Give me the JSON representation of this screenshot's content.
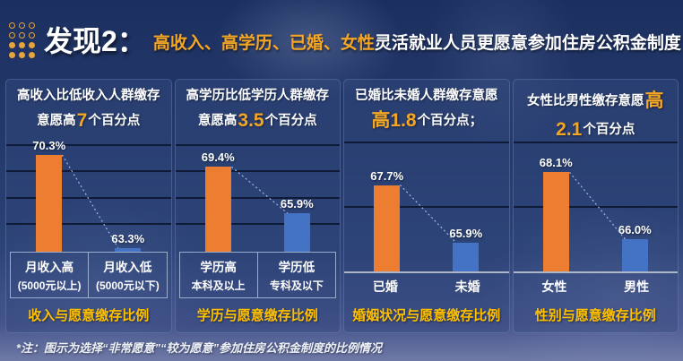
{
  "header": {
    "title": "发现2：",
    "subtitle_highlight": "高收入、高学历、已婚、女性",
    "subtitle_rest": "灵活就业人员更愿意参加住房公积金制度"
  },
  "footnote": "*注：图示为选择“非常愿意”“较为愿意”参加住房公积金制度的比例情况",
  "colors": {
    "bar_primary": "#ED7D31",
    "bar_secondary": "#4472C4",
    "title_highlight": "#F5A623",
    "caption_gold": "#FFC000",
    "connector": "#9DB9E8",
    "gridline": "#0A1630",
    "background_navy": "#24396B"
  },
  "chart_data": [
    {
      "type": "bar",
      "title_prefix": "高收入比低收入人群缴存意愿高",
      "title_number": "7",
      "title_suffix": "个百分点",
      "categories": [
        "月收入高",
        "月收入低"
      ],
      "category_sublabels": [
        "(5000元以上)",
        "(5000元以下)"
      ],
      "values": [
        70.3,
        63.3
      ],
      "value_labels": [
        "70.3%",
        "63.3%"
      ],
      "series_colors": [
        "#ED7D31",
        "#4472C4"
      ],
      "caption": "收入与愿意缴存比例",
      "ylim": [
        63,
        71.65
      ],
      "gridlines": [
        65,
        67,
        69,
        71
      ],
      "legend": "none"
    },
    {
      "type": "bar",
      "title_prefix": "高学历比低学历人群缴存意愿高",
      "title_number": "3.5",
      "title_suffix": "个百分点",
      "categories": [
        "学历高",
        "学历低"
      ],
      "category_sublabels": [
        "本科及以上",
        "专科及以下"
      ],
      "values": [
        69.4,
        65.9
      ],
      "value_labels": [
        "69.4%",
        "65.9%"
      ],
      "series_colors": [
        "#ED7D31",
        "#4472C4"
      ],
      "caption": "学历与愿意缴存比例",
      "ylim": [
        63,
        71.65
      ],
      "gridlines": [
        65,
        67,
        69,
        71
      ],
      "legend": "none"
    },
    {
      "type": "bar",
      "title_prefix": "已婚比未婚人群缴存意愿",
      "title_number": "高1.8",
      "title_suffix": "个百分点；",
      "categories": [
        "已婚",
        "未婚"
      ],
      "values": [
        67.7,
        65.9
      ],
      "value_labels": [
        "67.7%",
        "65.9%"
      ],
      "series_colors": [
        "#ED7D31",
        "#4472C4"
      ],
      "caption": "婚姻状况与愿意缴存比例",
      "ylim": [
        65,
        69.2
      ],
      "gridlines": [
        67,
        69
      ],
      "legend": "none"
    },
    {
      "type": "bar",
      "title_prefix": "女性比男性缴存意愿",
      "title_number": "高2.1",
      "title_suffix": "个百分点",
      "categories": [
        "女性",
        "男性"
      ],
      "values": [
        68.1,
        66.0
      ],
      "value_labels": [
        "68.1%",
        "66.0%"
      ],
      "series_colors": [
        "#ED7D31",
        "#4472C4"
      ],
      "caption": "性别与愿意缴存比例",
      "ylim": [
        65,
        69.2
      ],
      "gridlines": [
        67,
        69
      ],
      "legend": "none"
    }
  ]
}
